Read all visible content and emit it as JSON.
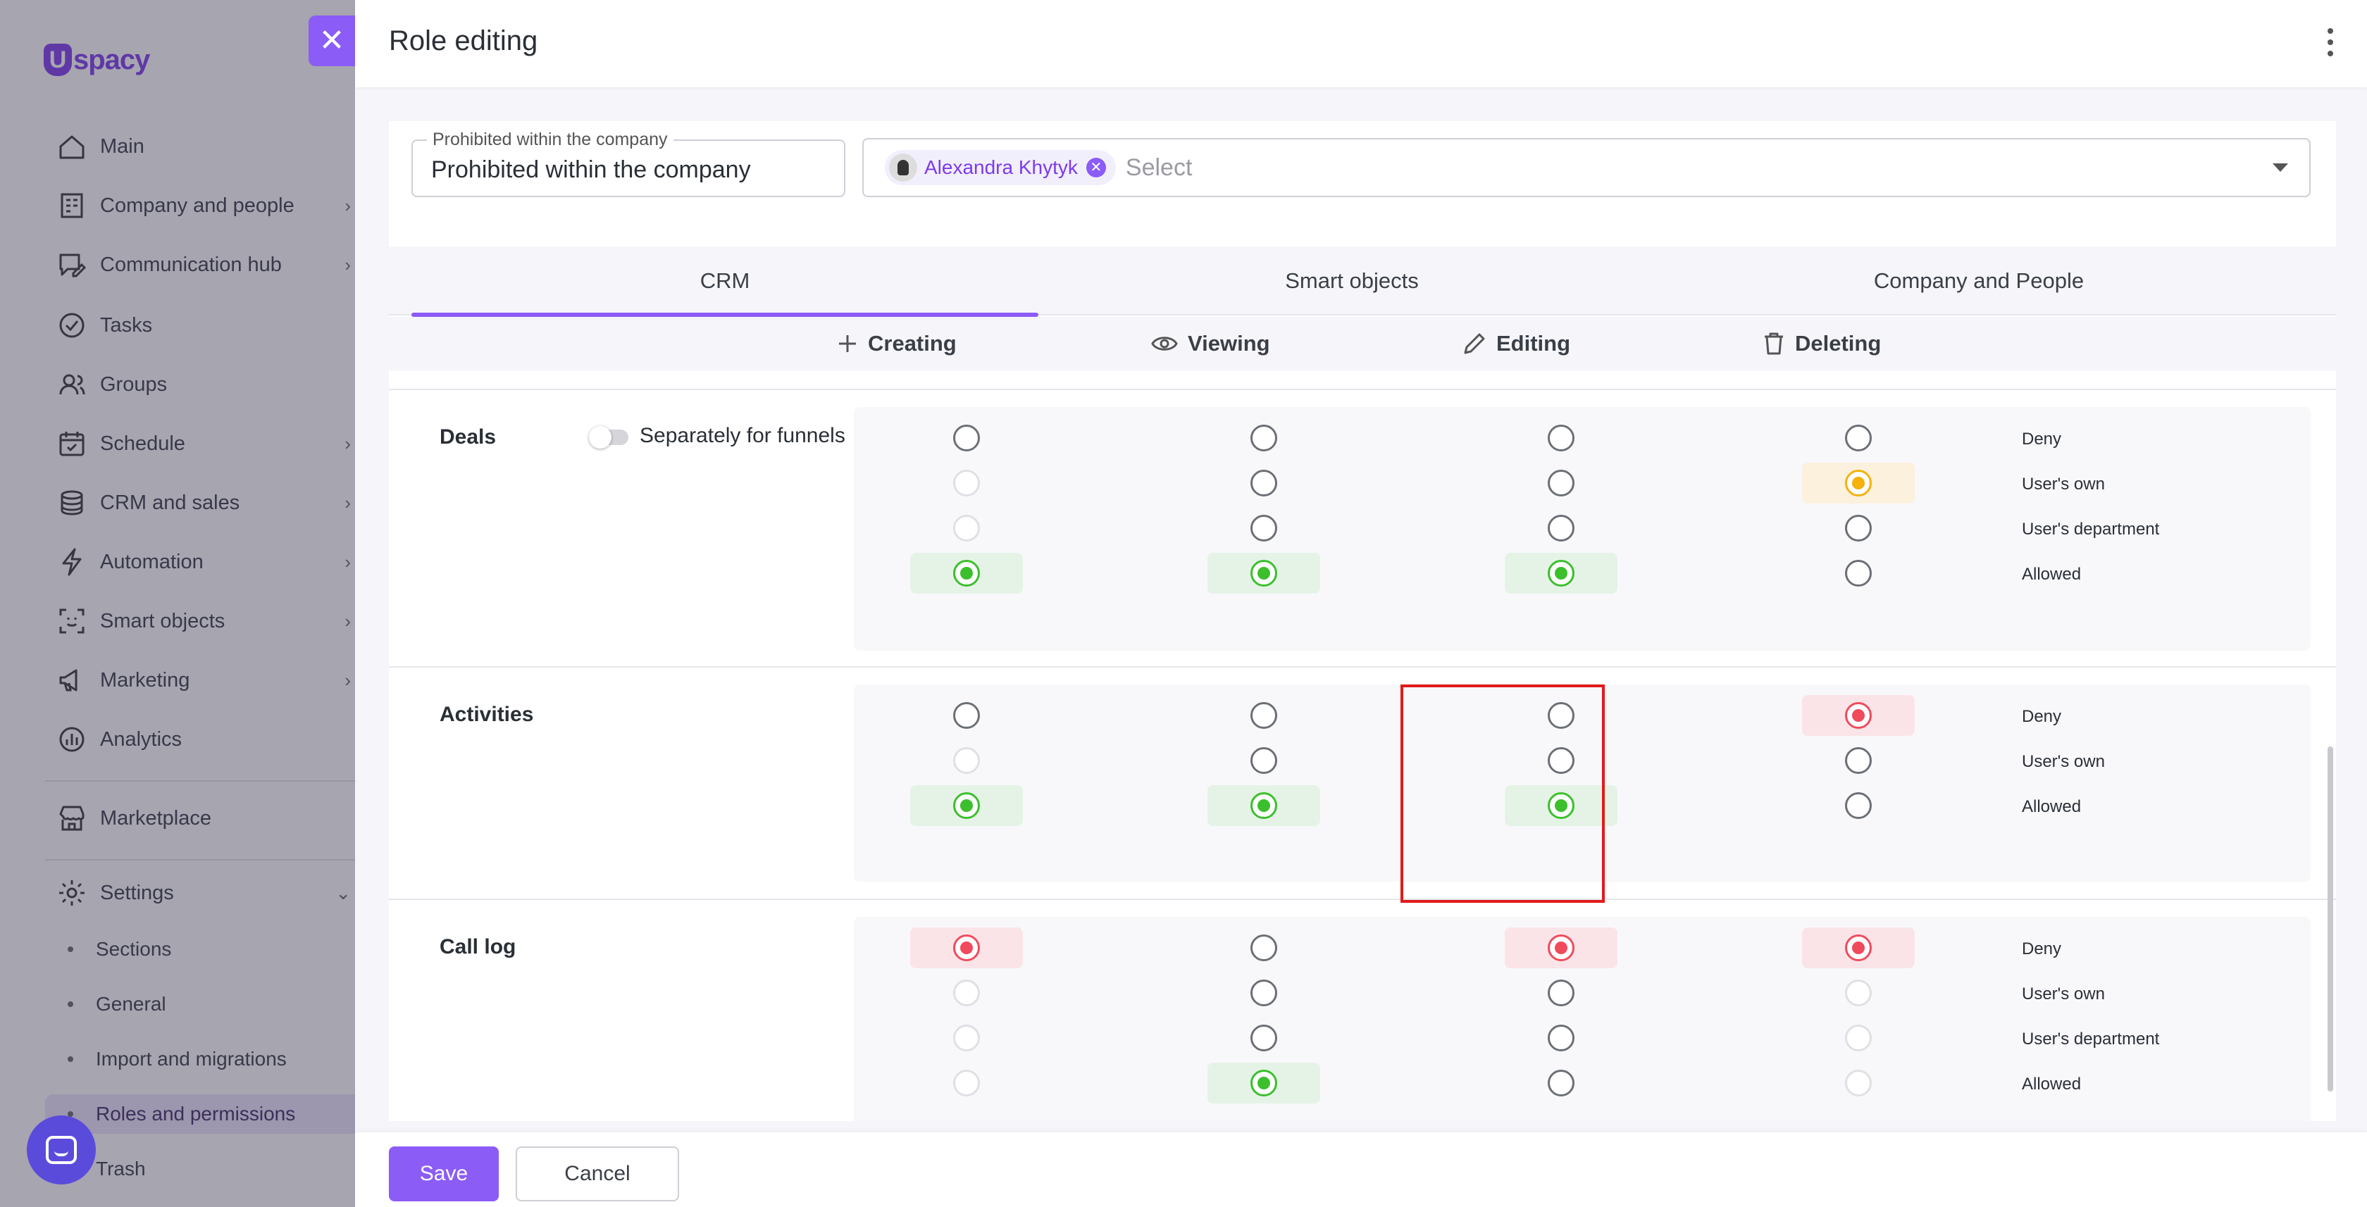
{
  "brand": {
    "logo_text": "spacy",
    "logo_letter": "U"
  },
  "sidebar": {
    "items": [
      {
        "label": "Main",
        "icon": "home-icon",
        "chevron": false
      },
      {
        "label": "Company and people",
        "icon": "building-icon",
        "chevron": true
      },
      {
        "label": "Communication hub",
        "icon": "chat-edit-icon",
        "chevron": true
      },
      {
        "label": "Tasks",
        "icon": "check-circle-icon",
        "chevron": false
      },
      {
        "label": "Groups",
        "icon": "users-icon",
        "chevron": false
      },
      {
        "label": "Schedule",
        "icon": "calendar-icon",
        "chevron": true
      },
      {
        "label": "CRM and sales",
        "icon": "coins-icon",
        "chevron": true
      },
      {
        "label": "Automation",
        "icon": "lightning-icon",
        "chevron": true
      },
      {
        "label": "Smart objects",
        "icon": "scan-icon",
        "chevron": true
      },
      {
        "label": "Marketing",
        "icon": "megaphone-icon",
        "chevron": true
      },
      {
        "label": "Analytics",
        "icon": "chart-icon",
        "chevron": false
      }
    ],
    "marketplace": {
      "label": "Marketplace",
      "icon": "store-icon"
    },
    "settings": {
      "label": "Settings",
      "icon": "gear-icon",
      "children": [
        "Sections",
        "General",
        "Import and migrations",
        "Roles and permissions",
        "Trash"
      ]
    }
  },
  "modal": {
    "title": "Role editing",
    "scope": {
      "legend": "Prohibited within the company",
      "value": "Prohibited within the company"
    },
    "assignee": {
      "chip_name": "Alexandra Khytyk",
      "placeholder": "Select"
    },
    "tabs": [
      "CRM",
      "Smart objects",
      "Company and People"
    ],
    "active_tab": "CRM",
    "permission_columns": [
      {
        "label": "Creating",
        "icon": "plus-icon"
      },
      {
        "label": "Viewing",
        "icon": "eye-icon"
      },
      {
        "label": "Editing",
        "icon": "pencil-icon"
      },
      {
        "label": "Deleting",
        "icon": "trash-icon"
      }
    ],
    "toggle_label": "Separately for funnels",
    "sections": [
      {
        "name": "Deals",
        "rows": [
          {
            "label": "Deny",
            "cells": [
              "empty",
              "empty",
              "empty",
              "empty"
            ]
          },
          {
            "label": "User's own",
            "cells": [
              "disabled",
              "empty",
              "empty",
              "yellow"
            ]
          },
          {
            "label": "User's department",
            "cells": [
              "disabled",
              "empty",
              "empty",
              "empty"
            ]
          },
          {
            "label": "Allowed",
            "cells": [
              "green",
              "green",
              "green",
              "empty"
            ]
          }
        ]
      },
      {
        "name": "Activities",
        "rows": [
          {
            "label": "Deny",
            "cells": [
              "empty",
              "empty",
              "empty",
              "red"
            ]
          },
          {
            "label": "User's own",
            "cells": [
              "disabled",
              "empty",
              "empty",
              "empty"
            ]
          },
          {
            "label": "Allowed",
            "cells": [
              "green",
              "green",
              "green",
              "empty"
            ]
          }
        ]
      },
      {
        "name": "Call log",
        "rows": [
          {
            "label": "Deny",
            "cells": [
              "red",
              "empty",
              "red",
              "red"
            ]
          },
          {
            "label": "User's own",
            "cells": [
              "disabled",
              "empty",
              "empty",
              "disabled"
            ]
          },
          {
            "label": "User's department",
            "cells": [
              "disabled",
              "empty",
              "empty",
              "disabled"
            ]
          },
          {
            "label": "Allowed",
            "cells": [
              "disabled",
              "green",
              "empty",
              "disabled"
            ]
          }
        ]
      }
    ]
  },
  "footer": {
    "save_label": "Save",
    "cancel_label": "Cancel"
  },
  "colors": {
    "accent": "#8b5cf6",
    "allowed": "#3bbf2c",
    "deny": "#ef4b5c",
    "own": "#f5b10c",
    "annotation": "#e01b1b"
  }
}
